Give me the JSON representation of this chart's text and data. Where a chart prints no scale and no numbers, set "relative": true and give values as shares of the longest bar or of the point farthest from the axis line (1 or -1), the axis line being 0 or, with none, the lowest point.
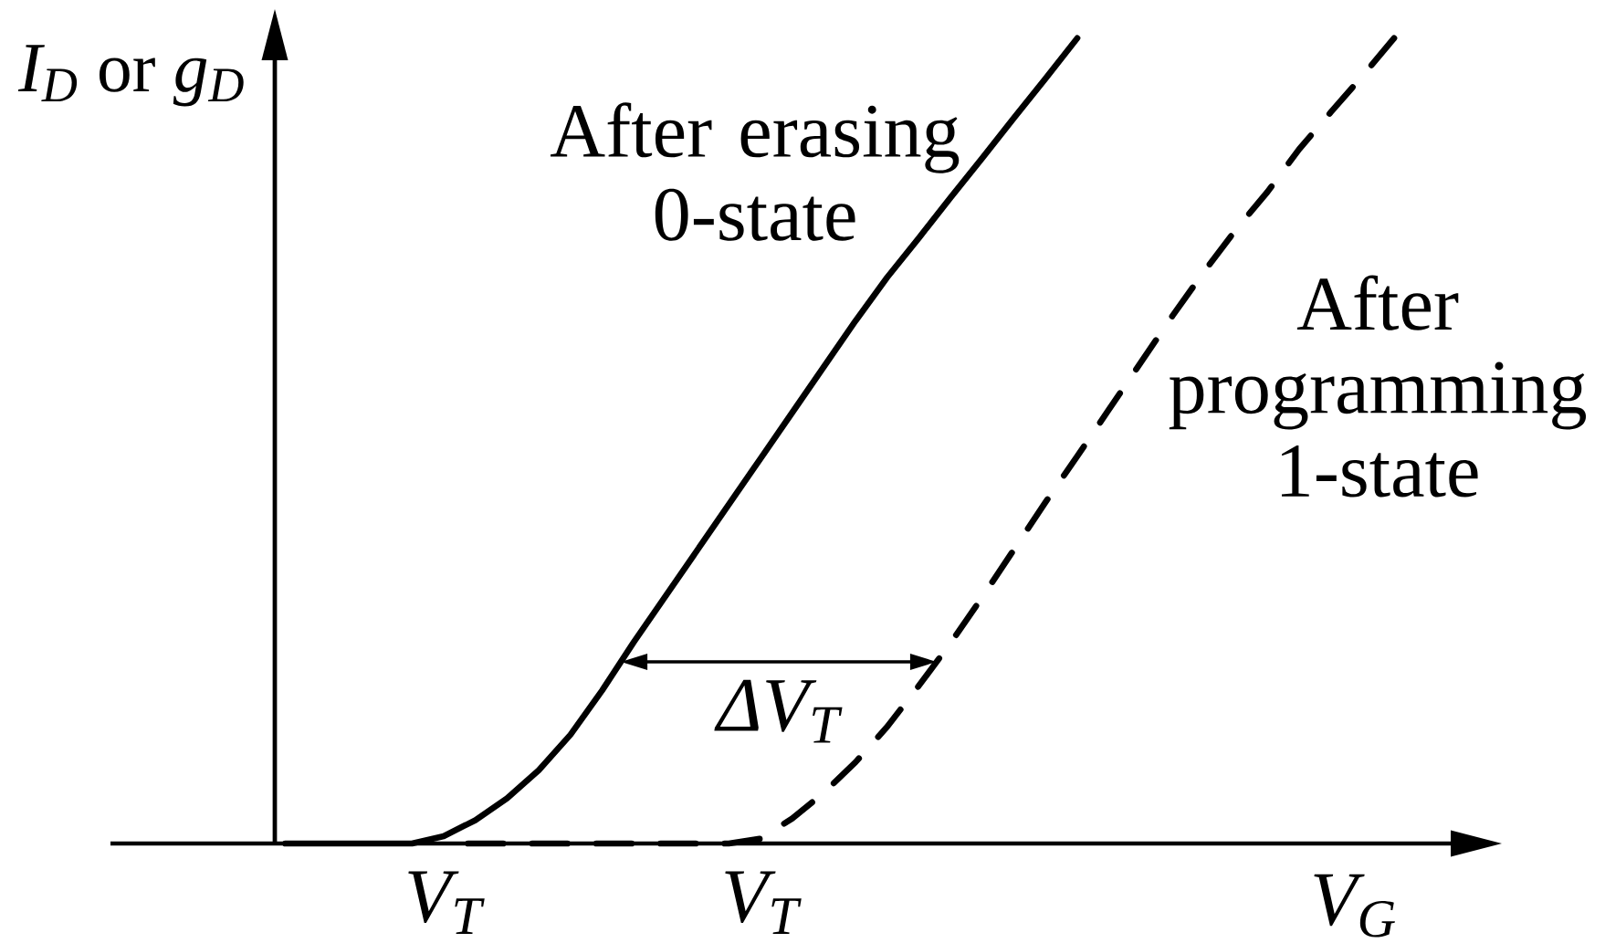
{
  "chart_data": {
    "type": "line",
    "relative": true,
    "xlabel": "V$_{G}$",
    "ylabel": "*I$_{D}$* or *g$_{D}$*",
    "categories": [
      null,
      null,
      null,
      null,
      null,
      "V$_{T}$",
      null,
      null,
      null,
      null,
      null,
      null,
      null,
      null,
      null,
      "V$_{T}$",
      null,
      null,
      null,
      null,
      null,
      null,
      null,
      null,
      null,
      null,
      null,
      null,
      null,
      null,
      null,
      null,
      null,
      null,
      null,
      null
    ],
    "series": [
      {
        "name": "After erasing 0-state",
        "color": "#000000",
        "line_style": "solid",
        "values": [
          0,
          0,
          0,
          0,
          0,
          0.009,
          0.029,
          0.056,
          0.091,
          0.135,
          0.19,
          0.25,
          0.307,
          0.364,
          0.421,
          0.478,
          0.535,
          0.592,
          0.649,
          0.703,
          0.752,
          0.802,
          0.851,
          0.901,
          0.95,
          1.0,
          null,
          null,
          null,
          null,
          null,
          null,
          null,
          null,
          null,
          null
        ]
      },
      {
        "name": "After programming 1-state",
        "color": "#000000",
        "line_style": "dashed",
        "values": [
          null,
          null,
          null,
          null,
          null,
          0,
          0,
          0,
          0,
          0,
          0,
          0,
          0,
          0,
          0,
          0.006,
          0.031,
          0.063,
          0.101,
          0.145,
          0.196,
          0.249,
          0.306,
          0.365,
          0.424,
          0.481,
          0.539,
          0.597,
          0.655,
          0.71,
          0.762,
          0.809,
          0.862,
          0.908,
          0.953,
          1.0
        ]
      }
    ],
    "annotations": [
      "ΔV$_{T}$"
    ]
  }
}
